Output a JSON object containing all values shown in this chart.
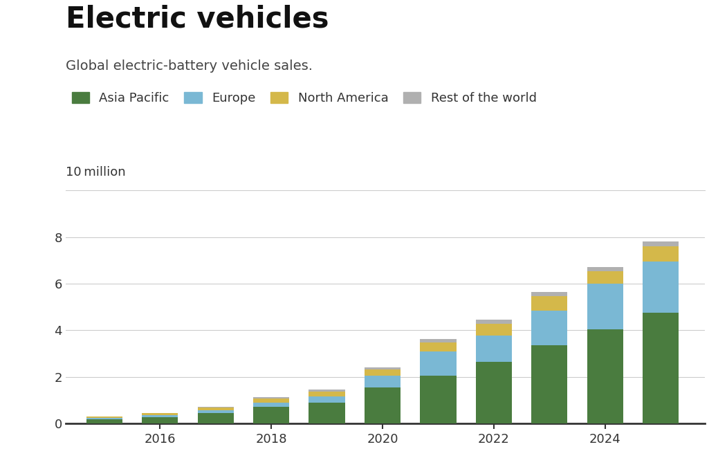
{
  "title": "Electric vehicles",
  "subtitle": "Global electric-battery vehicle sales.",
  "years": [
    2015,
    2016,
    2017,
    2018,
    2019,
    2020,
    2021,
    2022,
    2023,
    2024,
    2025
  ],
  "asia_pacific": [
    0.2,
    0.28,
    0.45,
    0.73,
    0.9,
    1.55,
    2.05,
    2.65,
    3.35,
    4.05,
    4.75
  ],
  "europe": [
    0.05,
    0.08,
    0.13,
    0.17,
    0.26,
    0.52,
    1.05,
    1.12,
    1.48,
    1.95,
    2.2
  ],
  "north_america": [
    0.06,
    0.08,
    0.1,
    0.18,
    0.22,
    0.25,
    0.37,
    0.52,
    0.65,
    0.55,
    0.65
  ],
  "rest_of_world": [
    0.01,
    0.02,
    0.03,
    0.05,
    0.07,
    0.08,
    0.15,
    0.16,
    0.17,
    0.15,
    0.2
  ],
  "colors": {
    "asia_pacific": "#4a7c3f",
    "europe": "#7ab8d4",
    "north_america": "#d4b84a",
    "rest_of_world": "#b0b0b0"
  },
  "legend_labels": [
    "Asia Pacific",
    "Europe",
    "North America",
    "Rest of the world"
  ],
  "ylim": [
    0,
    10
  ],
  "yticks": [
    0,
    2,
    4,
    6,
    8
  ],
  "ytick_labels": [
    "0",
    "2",
    "4",
    "6",
    "8"
  ],
  "xtick_years": [
    2016,
    2018,
    2020,
    2022,
    2024
  ],
  "top_label": "10 million",
  "background_color": "#ffffff",
  "grid_color": "#cccccc",
  "title_fontsize": 30,
  "subtitle_fontsize": 14,
  "legend_fontsize": 13,
  "tick_fontsize": 13
}
